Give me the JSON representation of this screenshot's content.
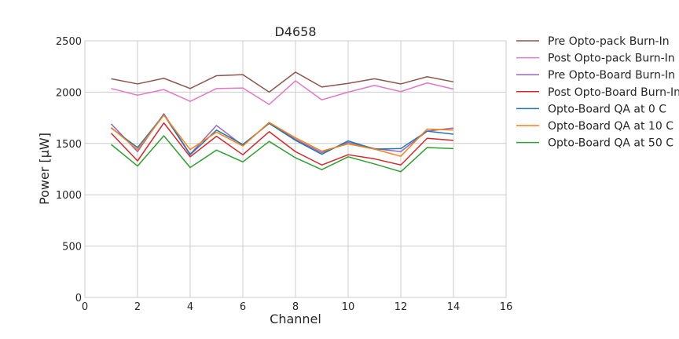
{
  "chart_data": {
    "type": "line",
    "title": "D4658",
    "xlabel": "Channel",
    "ylabel": "Power [μW]",
    "xlim": [
      0,
      16
    ],
    "ylim": [
      0,
      2500
    ],
    "xticks": [
      0,
      2,
      4,
      6,
      8,
      10,
      12,
      14,
      16
    ],
    "yticks": [
      0,
      500,
      1000,
      1500,
      2000,
      2500
    ],
    "grid": true,
    "legend_position": "outside-right",
    "x": [
      1,
      2,
      3,
      4,
      5,
      6,
      7,
      8,
      9,
      10,
      11,
      12,
      13,
      14
    ],
    "series": [
      {
        "name": "Pre Opto-pack Burn-In",
        "color": "#8c564b",
        "values": [
          2130,
          2080,
          2135,
          2035,
          2160,
          2170,
          2000,
          2195,
          2050,
          2085,
          2130,
          2080,
          2150,
          2100
        ]
      },
      {
        "name": "Post Opto-pack Burn-In",
        "color": "#e377c2",
        "values": [
          2035,
          1970,
          2025,
          1910,
          2035,
          2040,
          1880,
          2110,
          1925,
          2000,
          2065,
          2005,
          2090,
          2030
        ]
      },
      {
        "name": "Pre Opto-Board Burn-In",
        "color": "#9467bd",
        "values": [
          1690,
          1420,
          1790,
          1395,
          1675,
          1480,
          1700,
          1540,
          1410,
          1510,
          1450,
          1420,
          1620,
          1650
        ]
      },
      {
        "name": "Post Opto-Board Burn-In",
        "color": "#d62728",
        "values": [
          1600,
          1330,
          1700,
          1370,
          1570,
          1390,
          1615,
          1420,
          1290,
          1390,
          1350,
          1290,
          1550,
          1530
        ]
      },
      {
        "name": "Opto-Board QA at 0 C",
        "color": "#1f77b4",
        "values": [
          1650,
          1460,
          1780,
          1390,
          1630,
          1490,
          1695,
          1530,
          1395,
          1525,
          1445,
          1450,
          1620,
          1590
        ]
      },
      {
        "name": "Opto-Board QA at 10 C",
        "color": "#ff7f0e",
        "values": [
          1655,
          1440,
          1775,
          1440,
          1610,
          1475,
          1705,
          1555,
          1425,
          1495,
          1445,
          1375,
          1640,
          1630
        ]
      },
      {
        "name": "Opto-Board QA at 50 C",
        "color": "#2ca02c",
        "values": [
          1490,
          1280,
          1575,
          1265,
          1435,
          1320,
          1520,
          1360,
          1245,
          1370,
          1300,
          1225,
          1460,
          1450
        ]
      }
    ]
  }
}
